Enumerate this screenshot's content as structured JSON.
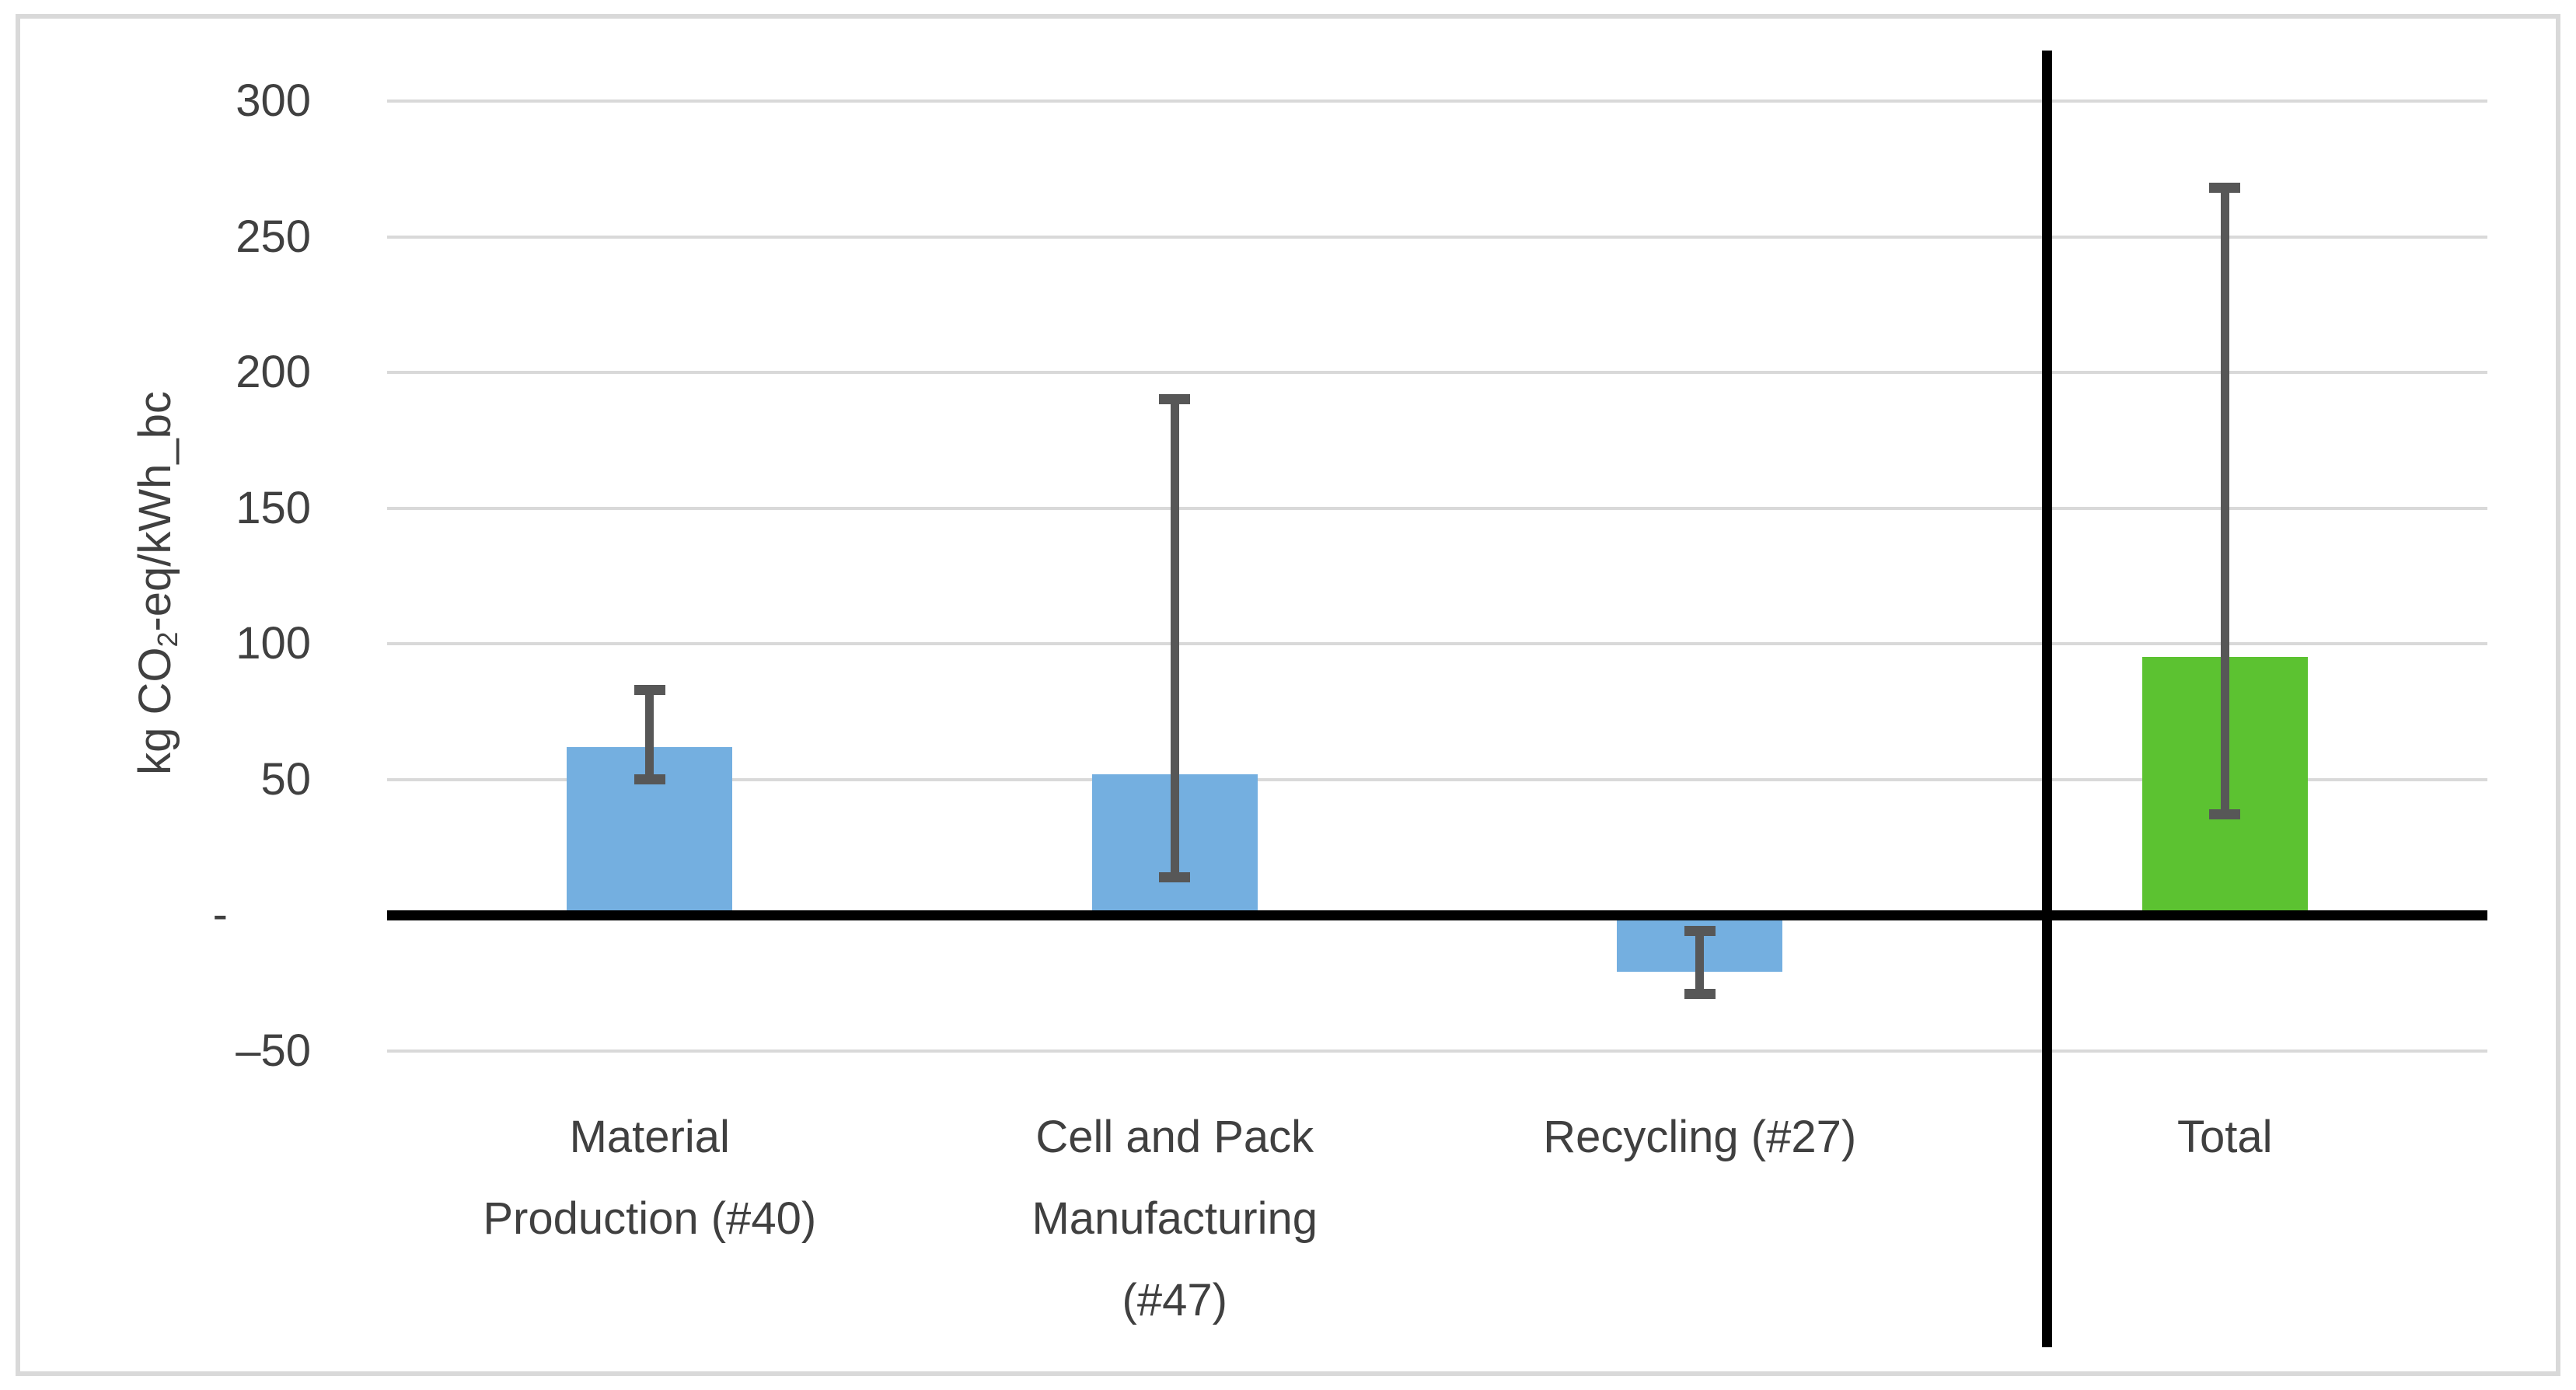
{
  "labels": {
    "ylabel_pre": "kg CO",
    "ylabel_sub": "2",
    "ylabel_post": "-eq/kWh_bc"
  },
  "chart_data": {
    "type": "bar",
    "title": "",
    "xlabel": "",
    "ylabel": "kg CO2-eq/kWh_bc",
    "ylim": [
      -70,
      320
    ],
    "grid": true,
    "legend": "none",
    "y_ticks": [
      {
        "value": 300,
        "label": "300"
      },
      {
        "value": 250,
        "label": "250"
      },
      {
        "value": 200,
        "label": "200"
      },
      {
        "value": 150,
        "label": "150"
      },
      {
        "value": 100,
        "label": "100"
      },
      {
        "value": 50,
        "label": "50"
      },
      {
        "value": 0,
        "label": "-"
      },
      {
        "value": -50,
        "label": "–50"
      }
    ],
    "categories": [
      "Material Production (#40)",
      "Cell and Pack Manufacturing (#47)",
      "Recycling (#27)",
      "Total"
    ],
    "bars": [
      {
        "id": "material-production",
        "label": "Material Production (#40)",
        "label_lines": [
          "Material",
          "Production (#40)"
        ],
        "value": 62,
        "error_low": 50,
        "error_high": 83,
        "color": "#74AFE0"
      },
      {
        "id": "cell-pack-manufacturing",
        "label": "Cell and Pack Manufacturing (#47)",
        "label_lines": [
          "Cell and Pack",
          "Manufacturing",
          "(#47)"
        ],
        "value": 52,
        "error_low": 14,
        "error_high": 190,
        "color": "#74AFE0"
      },
      {
        "id": "recycling",
        "label": "Recycling (#27)",
        "label_lines": [
          "Recycling (#27)"
        ],
        "value": -21,
        "error_low": -29,
        "error_high": -6,
        "color": "#74AFE0"
      },
      {
        "id": "total",
        "label": "Total",
        "label_lines": [
          "Total"
        ],
        "value": 95,
        "error_low": 37,
        "error_high": 268,
        "color": "#5CC231"
      }
    ],
    "colors": {
      "stage_bar": "#74AFE0",
      "total_bar": "#5CC231",
      "error_bar": "#575757",
      "gridline": "#D9D9D9",
      "axis_line": "#000000",
      "text": "#404040"
    },
    "annotations": {
      "separator_before": "Total"
    }
  }
}
